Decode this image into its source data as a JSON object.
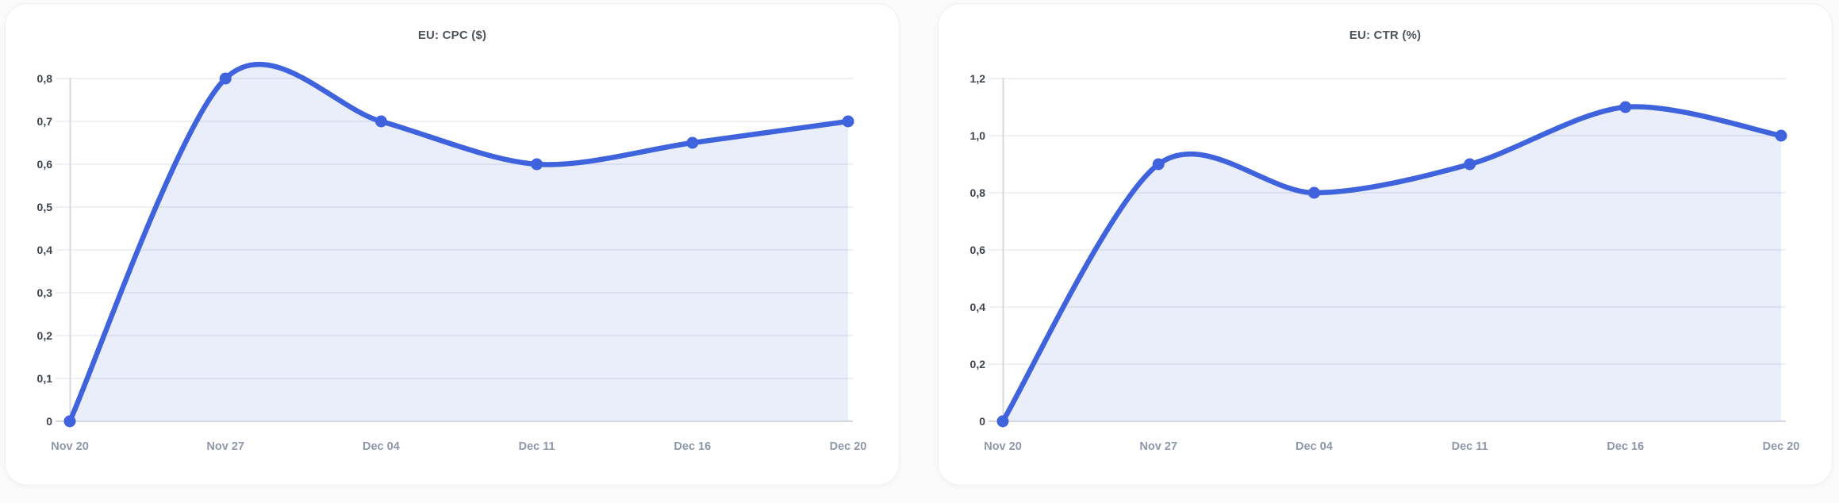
{
  "theme": {
    "page_bg": "#FBFBFC",
    "card_bg": "#FFFFFF",
    "card_border": "#EFEDF4",
    "line_color": "#3E63DD",
    "marker_color": "#3E63DD",
    "marker_hole_color": "#FFFFFF",
    "area_fill": "rgba(62,99,221,0.11)",
    "grid_color": "#EFF0F4",
    "axis_color": "#D5D8DE",
    "ytick_color": "#3F444D",
    "xtick_color": "#8E97AB",
    "title_color": "#4F545C"
  },
  "chart_data": [
    {
      "type": "area",
      "title": "EU: CPC ($)",
      "categories": [
        "Nov 20",
        "Nov 27",
        "Dec 04",
        "Dec 11",
        "Dec 16",
        "Dec 20"
      ],
      "values": [
        0,
        0.8,
        0.7,
        0.6,
        0.65,
        0.7
      ],
      "ylim": [
        0,
        0.8
      ],
      "ytick_step": 0.1,
      "yticks": [
        0,
        0.1,
        0.2,
        0.3,
        0.4,
        0.5,
        0.6,
        0.7,
        0.8
      ],
      "ytick_labels": [
        "0",
        "0,1",
        "0,2",
        "0,3",
        "0,4",
        "0,5",
        "0,6",
        "0,7",
        "0,8"
      ],
      "xlabel": "",
      "ylabel": "",
      "grid": true,
      "legend": "none",
      "smooth": true
    },
    {
      "type": "area",
      "title": "EU: CTR (%)",
      "categories": [
        "Nov 20",
        "Nov 27",
        "Dec 04",
        "Dec 11",
        "Dec 16",
        "Dec 20"
      ],
      "values": [
        0,
        0.9,
        0.8,
        0.9,
        1.1,
        1.0
      ],
      "ylim": [
        0,
        1.2
      ],
      "ytick_step": 0.2,
      "yticks": [
        0,
        0.2,
        0.4,
        0.6,
        0.8,
        1.0,
        1.2
      ],
      "ytick_labels": [
        "0",
        "0,2",
        "0,4",
        "0,6",
        "0,8",
        "1,0",
        "1,2"
      ],
      "xlabel": "",
      "ylabel": "",
      "grid": true,
      "legend": "none",
      "smooth": true
    }
  ]
}
